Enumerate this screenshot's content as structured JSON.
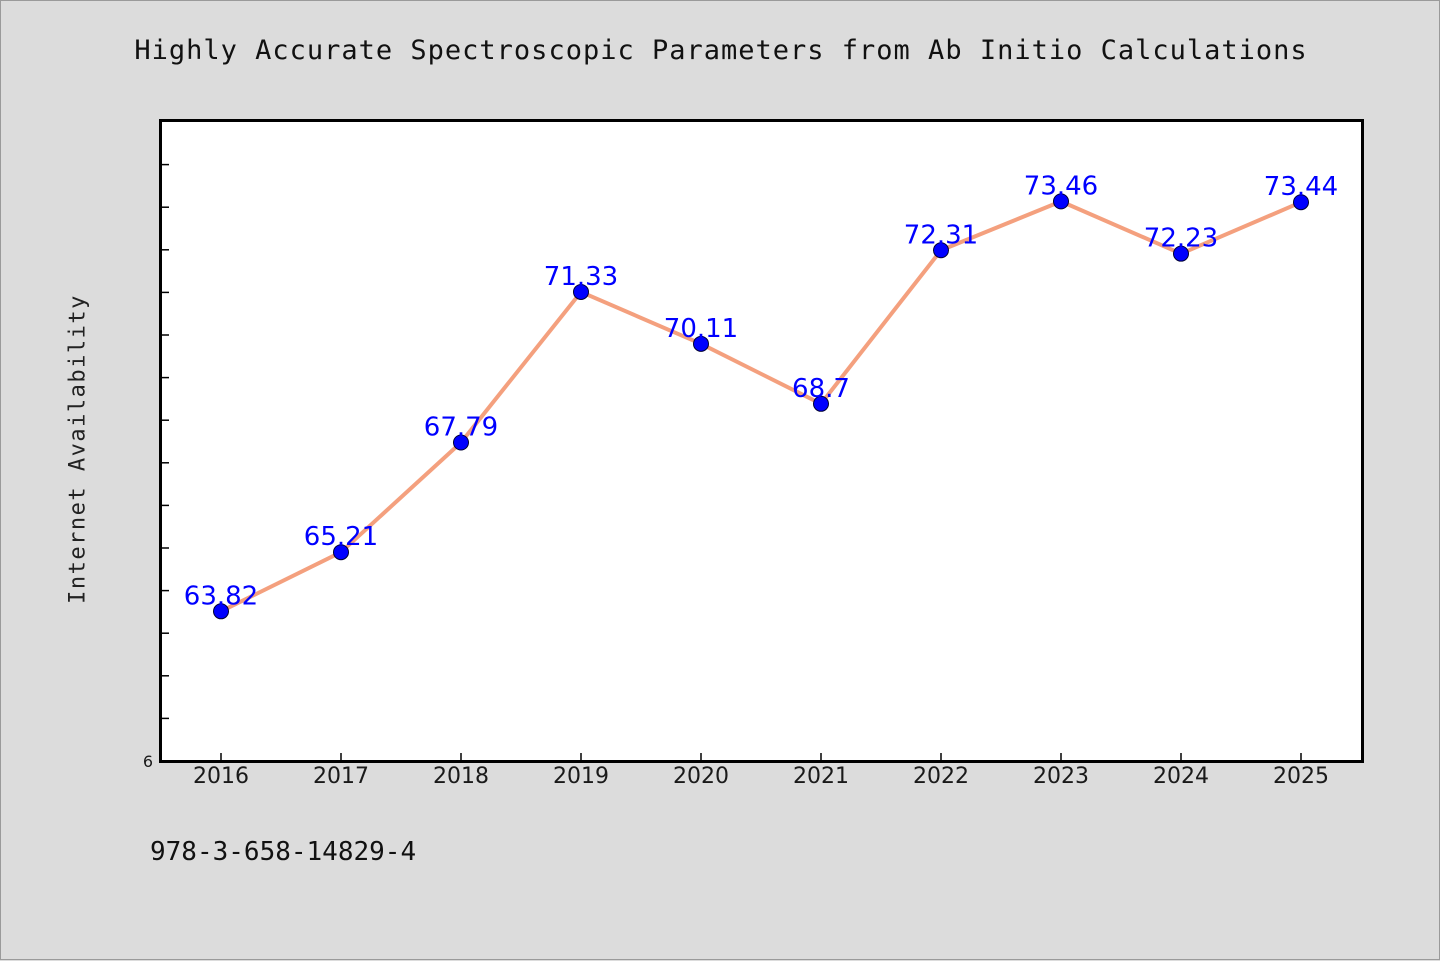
{
  "chart_data": {
    "type": "line",
    "title": "Highly Accurate Spectroscopic Parameters from Ab Initio Calculations",
    "xlabel": "",
    "ylabel": "Internet Availability",
    "categories": [
      "2016",
      "2017",
      "2018",
      "2019",
      "2020",
      "2021",
      "2022",
      "2023",
      "2024",
      "2025"
    ],
    "series": [
      {
        "values": [
          63.82,
          65.21,
          67.79,
          71.33,
          70.11,
          68.7,
          72.31,
          73.46,
          72.23,
          73.44
        ],
        "labels": [
          "63.82",
          "65.21",
          "67.79",
          "71.33",
          "70.11",
          "68.7",
          "72.31",
          "73.46",
          "72.23",
          "73.44"
        ]
      }
    ],
    "y_tick_labels": [
      "6"
    ],
    "ylim": [
      60.3,
      75.35
    ],
    "grid": false,
    "legend": "none",
    "colors": {
      "line": "#f4a07e",
      "marker": "#0000ff",
      "data_label": "#0000ff",
      "plot_bg": "#ffffff",
      "page_bg": "#dcdcdc"
    }
  },
  "footer_text": "978-3-658-14829-4"
}
